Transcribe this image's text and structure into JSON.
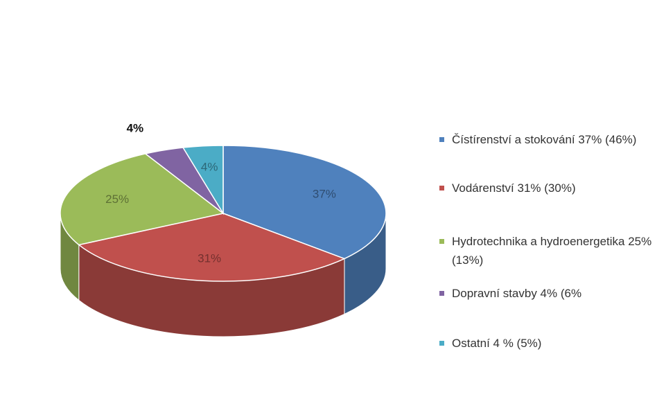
{
  "chart_data": {
    "type": "pie",
    "categories": [
      "Čístírenství a stokování 37% (46%)",
      "Vodárenství 31% (30%)",
      "Hydrotechnika a hydroenergetika 25% (13%)",
      "Dopravní stavby 4% (6%",
      "Ostatní 4 % (5%)"
    ],
    "values": [
      37,
      31,
      25,
      4,
      4
    ],
    "value_labels": [
      "37%",
      "31%",
      "25%",
      "4%",
      "4%"
    ],
    "colors": [
      "#4f81bd",
      "#c0504d",
      "#9bbb59",
      "#8064a2",
      "#4bacc6"
    ],
    "legend": "right"
  }
}
